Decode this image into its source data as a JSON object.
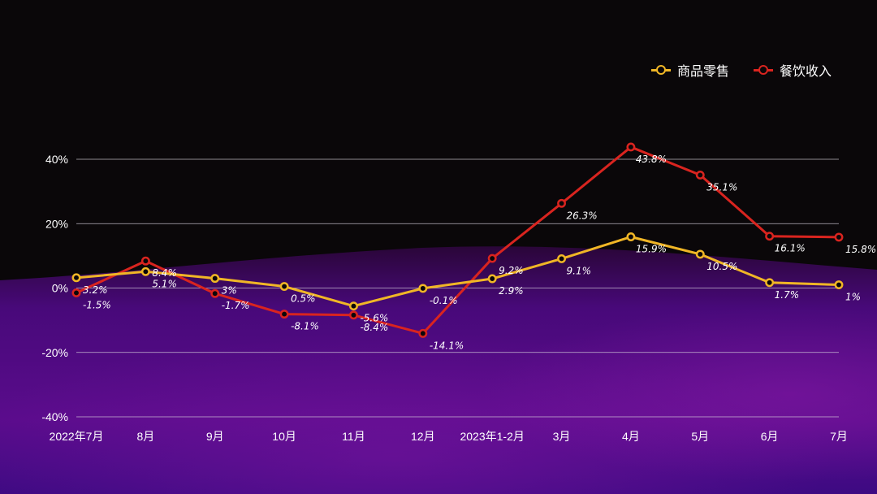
{
  "colors": {
    "background": "#0a0709",
    "retail": "#f0b626",
    "catering": "#d9241f",
    "grid": "#d8d3de",
    "purple": "#5a0c8c"
  },
  "chart_data": {
    "type": "line",
    "categories": [
      "2022年7月",
      "8月",
      "9月",
      "10月",
      "11月",
      "12月",
      "2023年1-2月",
      "3月",
      "4月",
      "5月",
      "6月",
      "7月"
    ],
    "yaxis": {
      "ticks": [
        40,
        20,
        0,
        -20,
        -40
      ],
      "tick_labels": [
        "40%",
        "20%",
        "0%",
        "-20%",
        "-40%"
      ],
      "ylim": [
        -40,
        40
      ],
      "grid": true
    },
    "series": [
      {
        "name": "商品零售",
        "color": "#f0b626",
        "values": [
          3.2,
          5.1,
          3,
          0.5,
          -5.6,
          -0.1,
          2.9,
          9.1,
          15.9,
          10.5,
          1.7,
          1
        ],
        "labels": [
          "3.2%",
          "5.1%",
          "3%",
          "0.5%",
          "-5.6%",
          "-0.1%",
          "2.9%",
          "9.1%",
          "15.9%",
          "10.5%",
          "1.7%",
          "1%"
        ]
      },
      {
        "name": "餐饮收入",
        "color": "#d9241f",
        "values": [
          -1.5,
          8.4,
          -1.7,
          -8.1,
          -8.4,
          -14.1,
          9.2,
          26.3,
          43.8,
          35.1,
          16.1,
          15.8
        ],
        "labels": [
          "-1.5%",
          "8.4%",
          "-1.7%",
          "-8.1%",
          "-8.4%",
          "-14.1%",
          "9.2%",
          "26.3%",
          "43.8%",
          "35.1%",
          "16.1%",
          "15.8%"
        ]
      }
    ],
    "legend": {
      "position": "top-right"
    },
    "title": "",
    "xlabel": "",
    "ylabel": ""
  }
}
